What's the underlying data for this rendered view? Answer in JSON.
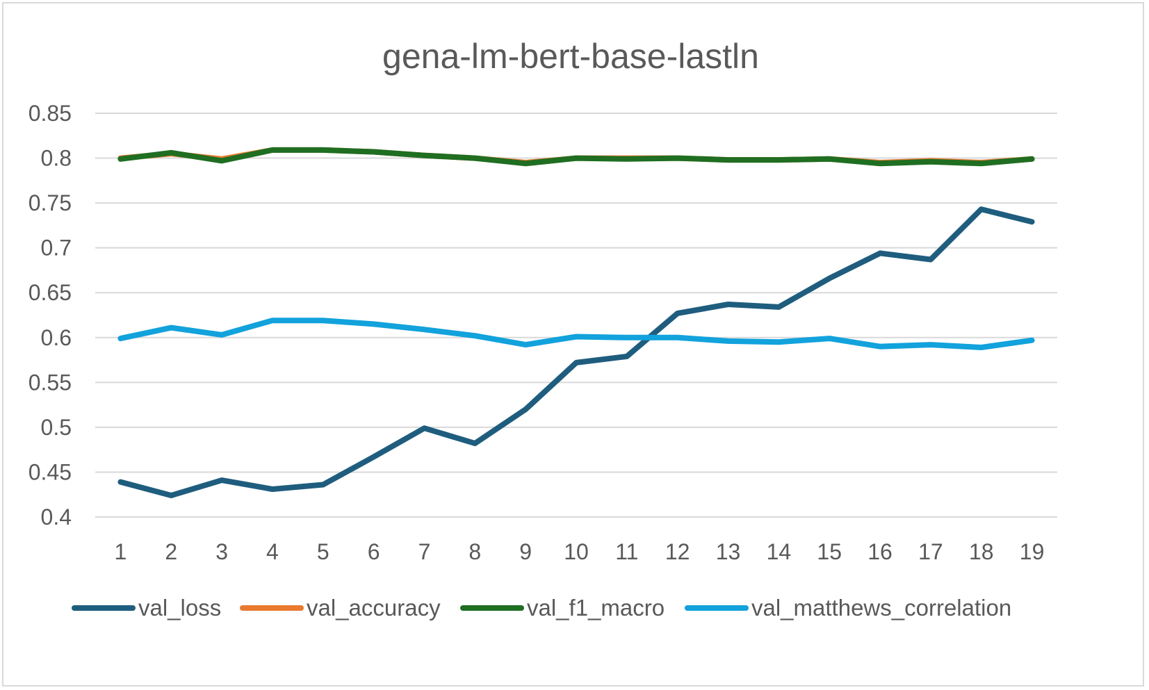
{
  "chart_data": {
    "type": "line",
    "title": "gena-lm-bert-base-lastln",
    "xlabel": "",
    "ylabel": "",
    "categories": [
      "1",
      "2",
      "3",
      "4",
      "5",
      "6",
      "7",
      "8",
      "9",
      "10",
      "11",
      "12",
      "13",
      "14",
      "15",
      "16",
      "17",
      "18",
      "19"
    ],
    "y_ticks": [
      "0.4",
      "0.45",
      "0.5",
      "0.55",
      "0.6",
      "0.65",
      "0.7",
      "0.75",
      "0.8",
      "0.85"
    ],
    "ylim": [
      0.4,
      0.85
    ],
    "grid": true,
    "legend_position": "bottom",
    "series": [
      {
        "name": "val_loss",
        "color": "#1f5d7e",
        "values": [
          0.439,
          0.424,
          0.441,
          0.431,
          0.436,
          0.467,
          0.499,
          0.482,
          0.52,
          0.572,
          0.579,
          0.627,
          0.637,
          0.634,
          0.666,
          0.694,
          0.687,
          0.743,
          0.729
        ]
      },
      {
        "name": "val_accuracy",
        "color": "#e97a2f",
        "values": [
          0.8,
          0.805,
          0.799,
          0.809,
          0.809,
          0.807,
          0.803,
          0.8,
          0.795,
          0.8,
          0.8,
          0.8,
          0.798,
          0.798,
          0.799,
          0.795,
          0.797,
          0.795,
          0.799
        ]
      },
      {
        "name": "val_f1_macro",
        "color": "#1f6e22",
        "values": [
          0.799,
          0.806,
          0.797,
          0.809,
          0.809,
          0.807,
          0.803,
          0.8,
          0.794,
          0.8,
          0.799,
          0.8,
          0.798,
          0.798,
          0.799,
          0.794,
          0.796,
          0.794,
          0.799
        ]
      },
      {
        "name": "val_matthews_correlation",
        "color": "#12a2dc",
        "values": [
          0.599,
          0.611,
          0.603,
          0.619,
          0.619,
          0.615,
          0.609,
          0.602,
          0.592,
          0.601,
          0.6,
          0.6,
          0.596,
          0.595,
          0.599,
          0.59,
          0.592,
          0.589,
          0.597
        ]
      }
    ]
  }
}
